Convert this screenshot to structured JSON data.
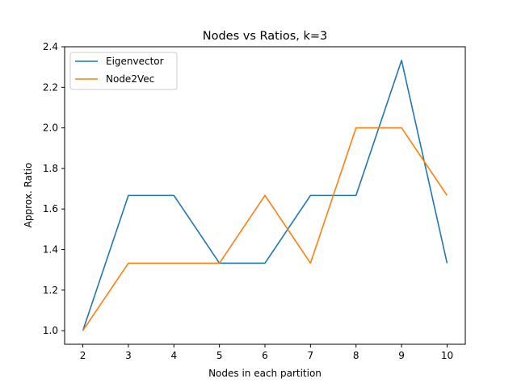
{
  "chart_data": {
    "type": "line",
    "title": "Nodes vs Ratios, k=3",
    "xlabel": "Nodes in each partition",
    "ylabel": "Approx. Ratio",
    "x": [
      2,
      3,
      4,
      5,
      6,
      7,
      8,
      9,
      10
    ],
    "xticks": [
      "2",
      "3",
      "4",
      "5",
      "6",
      "7",
      "8",
      "9",
      "10"
    ],
    "yticks": [
      "1.0",
      "1.2",
      "1.4",
      "1.6",
      "1.8",
      "2.0",
      "2.2",
      "2.4"
    ],
    "xlim": [
      1.6,
      10.4
    ],
    "ylim": [
      0.933,
      2.4
    ],
    "grid": false,
    "legend_position": "top-left",
    "series": [
      {
        "name": "Eigenvector",
        "color": "#1f77b4",
        "values": [
          1.0,
          1.667,
          1.667,
          1.333,
          1.333,
          1.667,
          1.667,
          2.333,
          1.333
        ]
      },
      {
        "name": "Node2Vec",
        "color": "#ff7f0e",
        "values": [
          1.0,
          1.333,
          1.333,
          1.333,
          1.667,
          1.333,
          2.0,
          2.0,
          1.667
        ]
      }
    ]
  }
}
